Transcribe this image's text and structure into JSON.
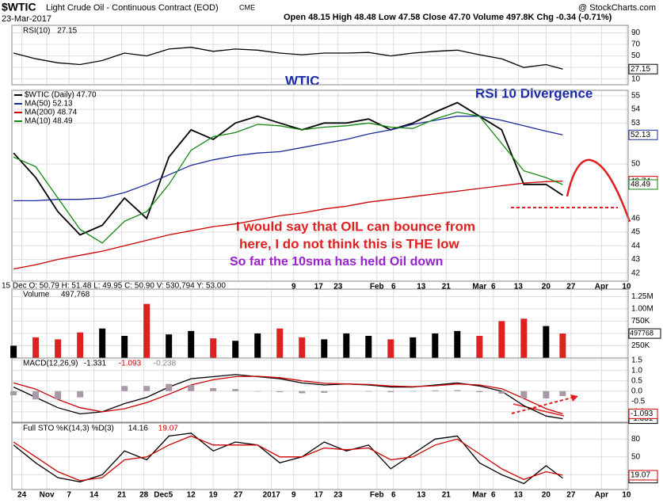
{
  "header": {
    "symbol": "$WTIC",
    "name": "Light Crude Oil - Continuous Contract (EOD)",
    "exchange": "CME",
    "date": "23-Mar-2017",
    "quote": "Open 48.15  High 48.48  Low 47.58  Close 47.70  Volume 497.8K  Chg -0.34 (-0.71%)",
    "brand": "@ StockCharts.com",
    "readout": "15 Dec O: 50.79  H: 51.48  L: 49.95  C: 50.90  V: 530,794  Y: 53.00"
  },
  "annotations": {
    "title": "WTIC",
    "divergence": "RSI 10 Divergence",
    "line1": "I would say that OIL can bounce from",
    "line2": "here, I do not think this is THE low",
    "line3": "So far the 10sma has held Oil down"
  },
  "chart_data": [
    {
      "type": "line",
      "title": "RSI(10)",
      "x": [
        0,
        4,
        8,
        12,
        16,
        20,
        24,
        28,
        32,
        36,
        40,
        44,
        48,
        52,
        56,
        60,
        64,
        68,
        72,
        76,
        80,
        84,
        88,
        92,
        96,
        99
      ],
      "series": [
        {
          "name": "RSI(10)",
          "color": "#000000",
          "values": [
            55,
            45,
            38,
            35,
            42,
            55,
            50,
            62,
            65,
            58,
            62,
            60,
            55,
            52,
            55,
            55,
            56,
            50,
            55,
            58,
            60,
            52,
            45,
            30,
            35,
            27.15
          ]
        }
      ],
      "xlim": [
        -0.3,
        110.8
      ],
      "ylim": [
        0,
        103
      ],
      "yticks": [
        10,
        30,
        50,
        70,
        90
      ],
      "grid": true
    },
    {
      "type": "line",
      "x": [
        0,
        4,
        8,
        12,
        16,
        20,
        24,
        28,
        32,
        36,
        40,
        44,
        48,
        52,
        56,
        60,
        64,
        68,
        72,
        76,
        80,
        84,
        88,
        92,
        96,
        99
      ],
      "series": [
        {
          "name": "$WTIC (Daily) 47.70",
          "color": "#000000",
          "values": [
            50.8,
            49.0,
            46.5,
            44.8,
            45.5,
            47.5,
            46.0,
            50.5,
            52.5,
            51.8,
            53.0,
            53.5,
            53.0,
            52.5,
            53.0,
            53.0,
            53.3,
            52.5,
            53.0,
            53.8,
            54.5,
            53.5,
            52.5,
            48.5,
            48.5,
            47.7
          ]
        },
        {
          "name": "MA(50) 52.13",
          "color": "#1a2a9a",
          "values": [
            47.3,
            47.3,
            47.4,
            47.4,
            47.5,
            47.9,
            48.5,
            49.2,
            49.9,
            50.3,
            50.6,
            50.8,
            50.9,
            51.2,
            51.5,
            51.8,
            52.2,
            52.5,
            52.9,
            53.2,
            53.5,
            53.5,
            53.2,
            52.8,
            52.4,
            52.13
          ]
        },
        {
          "name": "MA(200) 48.74",
          "color": "#cc0000",
          "values": [
            42.3,
            42.6,
            43.0,
            43.3,
            43.6,
            44.0,
            44.4,
            44.8,
            45.1,
            45.4,
            45.6,
            45.9,
            46.2,
            46.4,
            46.7,
            46.9,
            47.2,
            47.4,
            47.6,
            47.8,
            48.0,
            48.2,
            48.4,
            48.6,
            48.7,
            48.74
          ]
        },
        {
          "name": "MA(10) 48.49",
          "color": "#118811",
          "values": [
            50.5,
            49.8,
            47.5,
            45.2,
            44.2,
            45.8,
            46.5,
            48.5,
            51.0,
            52.0,
            52.3,
            52.9,
            52.8,
            52.5,
            52.7,
            52.8,
            53.0,
            52.7,
            52.6,
            53.3,
            53.8,
            53.5,
            51.5,
            49.5,
            49.0,
            48.49
          ]
        }
      ],
      "xlim": [
        -0.3,
        110.8
      ],
      "ylim": [
        41.4,
        55.4
      ],
      "yticks": [
        42,
        43,
        44,
        45,
        46,
        50,
        53,
        54,
        55
      ],
      "xticks": [
        {
          "value": 50.5,
          "label": "9"
        },
        {
          "value": 55,
          "label": "17"
        },
        {
          "value": 58.5,
          "label": "23"
        },
        {
          "value": 65.5,
          "label": "Feb"
        },
        {
          "value": 68.5,
          "label": "6"
        },
        {
          "value": 73.5,
          "label": "13"
        },
        {
          "value": 78,
          "label": "21"
        },
        {
          "value": 84,
          "label": "Mar"
        },
        {
          "value": 86.5,
          "label": "6"
        },
        {
          "value": 91,
          "label": "13"
        },
        {
          "value": 96,
          "label": "20"
        },
        {
          "value": 100.5,
          "label": "27"
        },
        {
          "value": 106,
          "label": "Apr"
        },
        {
          "value": 110.5,
          "label": "10"
        }
      ],
      "grid": true
    },
    {
      "type": "bar",
      "title": "Volume",
      "x": [
        0,
        4,
        8,
        12,
        16,
        20,
        24,
        28,
        32,
        36,
        40,
        44,
        48,
        52,
        56,
        60,
        64,
        68,
        72,
        76,
        80,
        84,
        88,
        92,
        96,
        99
      ],
      "values": [
        250000,
        420000,
        380000,
        520000,
        600000,
        450000,
        1100000,
        480000,
        550000,
        400000,
        350000,
        500000,
        600000,
        420000,
        380000,
        500000,
        450000,
        380000,
        420000,
        500000,
        550000,
        450000,
        750000,
        800000,
        650000,
        497768
      ],
      "value_labels": [
        null,
        null,
        null,
        null,
        null,
        null,
        null,
        null,
        null,
        null,
        null,
        null,
        null,
        null,
        null,
        null,
        null,
        null,
        null,
        null,
        null,
        null,
        null,
        null,
        null,
        "497,768"
      ],
      "up_color": "#000000",
      "down_color": "#dd2222",
      "xlim": [
        -0.3,
        110.8
      ],
      "ylim": [
        0,
        1400000
      ],
      "yticks": [
        {
          "value": 250000,
          "label": "250K"
        },
        {
          "value": 500000,
          "label": "500K"
        },
        {
          "value": 750000,
          "label": "750K"
        },
        {
          "value": 1000000,
          "label": "1.00M"
        },
        {
          "value": 1250000,
          "label": "1.25M"
        }
      ],
      "grid": true
    },
    {
      "type": "line",
      "title": "MACD(12,26,9)",
      "x": [
        0,
        4,
        8,
        12,
        16,
        20,
        24,
        28,
        32,
        36,
        40,
        44,
        48,
        52,
        56,
        60,
        64,
        68,
        72,
        76,
        80,
        84,
        88,
        92,
        96,
        99
      ],
      "series": [
        {
          "name": "MACD",
          "color": "#000000",
          "values": [
            0.2,
            -0.3,
            -0.8,
            -1.1,
            -1.0,
            -0.6,
            -0.3,
            0.2,
            0.6,
            0.7,
            0.8,
            0.7,
            0.6,
            0.4,
            0.3,
            0.35,
            0.3,
            0.2,
            0.2,
            0.3,
            0.4,
            0.25,
            0.0,
            -0.7,
            -1.2,
            -1.331
          ]
        },
        {
          "name": "Signal",
          "color": "#cc0000",
          "values": [
            0.4,
            0.1,
            -0.4,
            -0.8,
            -1.0,
            -0.85,
            -0.55,
            -0.15,
            0.3,
            0.55,
            0.7,
            0.72,
            0.65,
            0.5,
            0.38,
            0.35,
            0.32,
            0.25,
            0.22,
            0.26,
            0.35,
            0.3,
            0.12,
            -0.35,
            -0.85,
            -1.093
          ]
        },
        {
          "name": "Histogram",
          "kind": "bar",
          "color": "#a898a8",
          "values": [
            -0.2,
            -0.4,
            -0.4,
            -0.3,
            0.0,
            0.25,
            0.25,
            0.35,
            0.3,
            0.15,
            0.1,
            -0.02,
            -0.05,
            -0.1,
            -0.08,
            0.0,
            -0.02,
            -0.05,
            -0.02,
            0.04,
            0.05,
            -0.05,
            -0.12,
            -0.35,
            -0.35,
            -0.238
          ]
        }
      ],
      "xlim": [
        -0.3,
        110.8
      ],
      "ylim": [
        -1.5,
        1.6
      ],
      "yticks": [
        {
          "value": -1,
          "label": "-1.0"
        },
        -0.5,
        {
          "value": 0,
          "label": "0.0"
        },
        0.5,
        {
          "value": 1,
          "label": "1.0"
        },
        1.5
      ],
      "grid": true
    },
    {
      "type": "line",
      "title": "Full STO %K(14,3) %D(3)",
      "x": [
        0,
        4,
        8,
        12,
        16,
        20,
        24,
        28,
        32,
        36,
        40,
        44,
        48,
        52,
        56,
        60,
        64,
        68,
        72,
        76,
        80,
        84,
        88,
        92,
        96,
        99
      ],
      "series": [
        {
          "name": "%K",
          "color": "#000000",
          "values": [
            70,
            40,
            15,
            8,
            20,
            60,
            45,
            85,
            90,
            60,
            75,
            70,
            40,
            50,
            75,
            60,
            70,
            30,
            55,
            80,
            85,
            40,
            20,
            5,
            35,
            14.16
          ]
        },
        {
          "name": "%D",
          "color": "#cc0000",
          "values": [
            75,
            50,
            25,
            10,
            15,
            45,
            50,
            70,
            85,
            70,
            70,
            70,
            50,
            50,
            65,
            62,
            65,
            45,
            50,
            70,
            80,
            55,
            30,
            12,
            25,
            19.07
          ]
        }
      ],
      "xlim": [
        -0.3,
        110.8
      ],
      "ylim": [
        -5,
        107
      ],
      "yticks": [
        20,
        50,
        80
      ],
      "xticks": [
        {
          "value": 1.5,
          "label": "24"
        },
        {
          "value": 6,
          "label": "Nov"
        },
        {
          "value": 10,
          "label": "7"
        },
        {
          "value": 14.5,
          "label": "14"
        },
        {
          "value": 19.5,
          "label": "21"
        },
        {
          "value": 23.5,
          "label": "28"
        },
        {
          "value": 27,
          "label": "Dec5"
        },
        {
          "value": 32,
          "label": "12"
        },
        {
          "value": 36,
          "label": "19"
        },
        {
          "value": 40.5,
          "label": "27"
        },
        {
          "value": 46.5,
          "label": "2017"
        },
        {
          "value": 50.5,
          "label": "9"
        },
        {
          "value": 55,
          "label": "17"
        },
        {
          "value": 58.5,
          "label": "23"
        },
        {
          "value": 65.5,
          "label": "Feb"
        },
        {
          "value": 68.5,
          "label": "6"
        },
        {
          "value": 73.5,
          "label": "13"
        },
        {
          "value": 78,
          "label": "21"
        },
        {
          "value": 84,
          "label": "Mar"
        },
        {
          "value": 86.5,
          "label": "6"
        },
        {
          "value": 91,
          "label": "13"
        },
        {
          "value": 96,
          "label": "20"
        },
        {
          "value": 100.5,
          "label": "27"
        },
        {
          "value": 106,
          "label": "Apr"
        },
        {
          "value": 110.5,
          "label": "10"
        }
      ],
      "grid": true
    }
  ]
}
